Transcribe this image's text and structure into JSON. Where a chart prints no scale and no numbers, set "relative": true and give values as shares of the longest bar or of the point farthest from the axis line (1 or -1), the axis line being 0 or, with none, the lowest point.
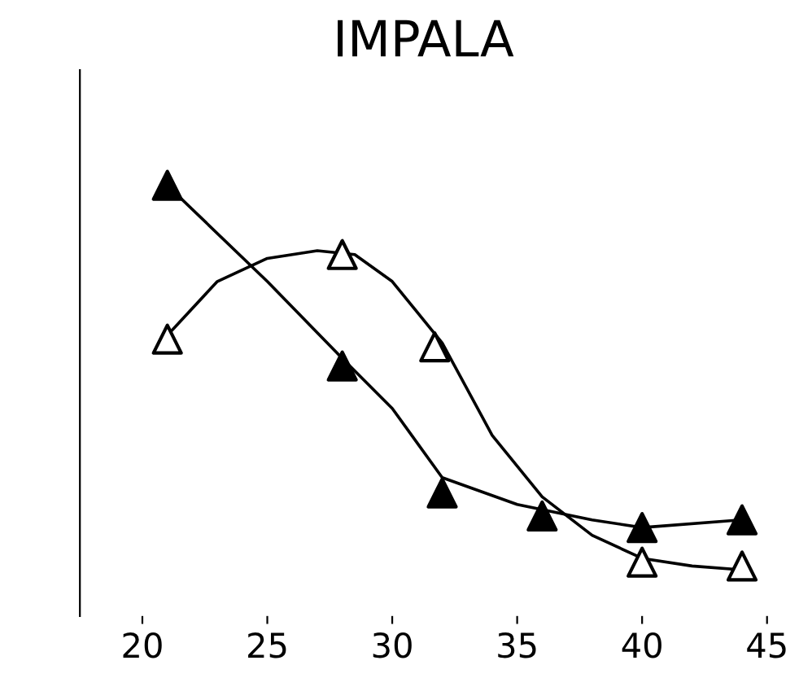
{
  "chart_data": {
    "type": "scatter",
    "title": "IMPALA",
    "relative": true,
    "x": [
      21,
      28,
      32,
      36,
      40,
      44
    ],
    "xlim": [
      17.5,
      45
    ],
    "xticks": [
      20,
      25,
      30,
      35,
      40,
      45
    ],
    "marker": "triangle",
    "legend": false,
    "grid": false,
    "series": [
      {
        "color": "#000000",
        "values": [
          1,
          0.53,
          0.2,
          0.14,
          0.11,
          0.13
        ]
      },
      {
        "color": "#000000",
        "x": [
          21,
          28,
          31.7,
          40,
          44
        ],
        "values": [
          0.6,
          0.82,
          0.58,
          0.02,
          0.01
        ]
      },
      {
        "type": "line",
        "marker": "none",
        "color": "#000000",
        "x": [
          21,
          25,
          28,
          30,
          32,
          35,
          38,
          40,
          44
        ],
        "values": [
          1,
          0.75,
          0.55,
          0.42,
          0.24,
          0.17,
          0.13,
          0.11,
          0.13
        ]
      },
      {
        "type": "line",
        "marker": "none",
        "color": "#000000",
        "x": [
          21,
          23,
          25,
          27,
          28.5,
          30,
          32,
          34,
          36,
          38,
          40,
          42,
          44
        ],
        "values": [
          0.61,
          0.75,
          0.81,
          0.83,
          0.82,
          0.75,
          0.59,
          0.35,
          0.19,
          0.09,
          0.03,
          0.01,
          0
        ]
      }
    ]
  }
}
